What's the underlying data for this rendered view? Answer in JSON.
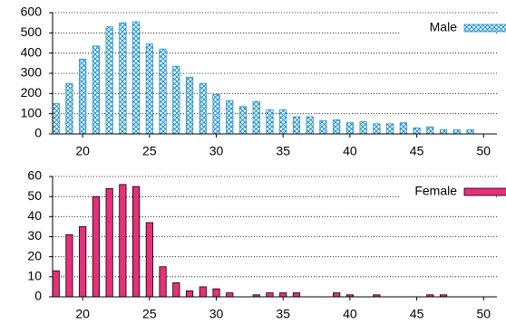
{
  "chart_data": [
    {
      "type": "bar",
      "x": [
        18,
        19,
        20,
        21,
        22,
        23,
        24,
        25,
        26,
        27,
        28,
        29,
        30,
        31,
        32,
        33,
        34,
        35,
        36,
        37,
        38,
        39,
        40,
        41,
        42,
        43,
        44,
        45,
        46,
        47,
        48,
        49
      ],
      "series": [
        {
          "name": "Male",
          "color": "#1a8fd0",
          "pattern": "crosshatch",
          "values": [
            150,
            250,
            370,
            435,
            530,
            550,
            555,
            445,
            420,
            335,
            280,
            250,
            195,
            165,
            135,
            160,
            120,
            120,
            85,
            85,
            65,
            70,
            55,
            60,
            50,
            50,
            55,
            30,
            35,
            20,
            20,
            20
          ]
        }
      ],
      "xlim": [
        17.75,
        51
      ],
      "xticks": [
        20,
        25,
        30,
        35,
        40,
        45,
        50
      ],
      "ylim": [
        0,
        600
      ],
      "yticks": [
        0,
        100,
        200,
        300,
        400,
        500,
        600
      ],
      "grid": true,
      "legend": "upper right"
    },
    {
      "type": "bar",
      "x": [
        18,
        19,
        20,
        21,
        22,
        23,
        24,
        25,
        26,
        27,
        28,
        29,
        30,
        31,
        32,
        33,
        34,
        35,
        36,
        37,
        38,
        39,
        40,
        41,
        42,
        43,
        44,
        45,
        46,
        47,
        48,
        49
      ],
      "series": [
        {
          "name": "Female",
          "color": "#e8307a",
          "pattern": "solid",
          "values": [
            13,
            31,
            35,
            50,
            54,
            56,
            55,
            37,
            15,
            7,
            3,
            5,
            4,
            2,
            0,
            1,
            2,
            2,
            2,
            0,
            0,
            2,
            1,
            0,
            1,
            0,
            0,
            0,
            1,
            1,
            0,
            0
          ]
        }
      ],
      "xlim": [
        17.75,
        51
      ],
      "xticks": [
        20,
        25,
        30,
        35,
        40,
        45,
        50
      ],
      "ylim": [
        0,
        60
      ],
      "yticks": [
        0,
        10,
        20,
        30,
        40,
        50,
        60
      ],
      "grid": true,
      "legend": "upper right"
    }
  ]
}
